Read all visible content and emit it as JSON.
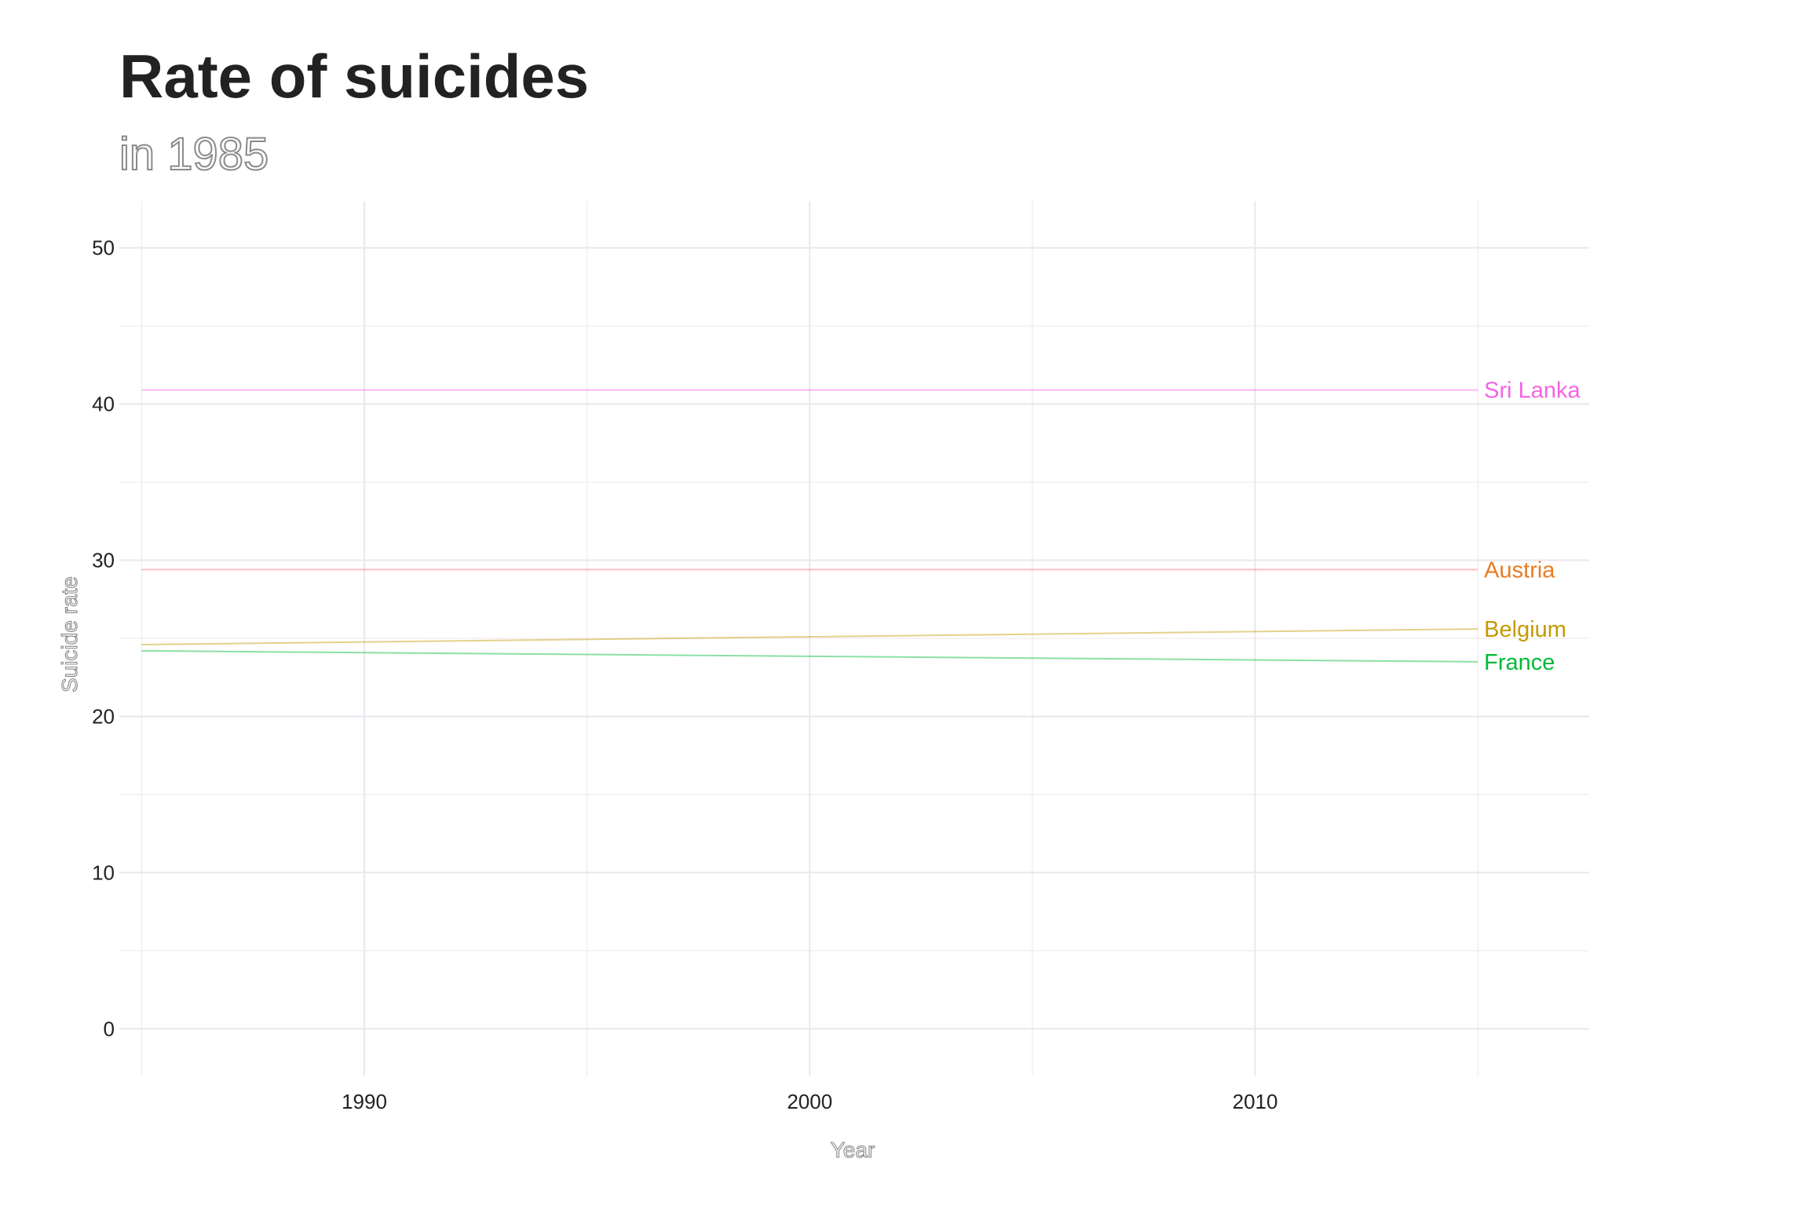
{
  "chart_data": {
    "type": "line",
    "title": "Rate of suicides",
    "subtitle": "in 1985",
    "xlabel": "Year",
    "ylabel": "Suicide rate",
    "xlim": [
      1984.5,
      2017.5
    ],
    "ylim": [
      -3,
      53
    ],
    "x_ticks": [
      1990,
      2000,
      2010
    ],
    "x_ticks_minor": [
      1985,
      1995,
      2005,
      2015
    ],
    "y_ticks": [
      0,
      10,
      20,
      30,
      40,
      50
    ],
    "y_ticks_minor": [
      5,
      15,
      25,
      35,
      45
    ],
    "grid": true,
    "legend": "none (labels at line ends)",
    "series": [
      {
        "name": "Sri Lanka",
        "color": "#f564e3",
        "x": [
          1985,
          2015
        ],
        "values": [
          40.9,
          40.9
        ]
      },
      {
        "name": "Austria",
        "color": "#f8766d",
        "x": [
          1985,
          2015
        ],
        "values": [
          29.4,
          29.4
        ]
      },
      {
        "name": "Belgium",
        "color": "#c49a00",
        "x": [
          1985,
          2015
        ],
        "values": [
          24.6,
          25.6
        ]
      },
      {
        "name": "France",
        "color": "#00ba38",
        "x": [
          1985,
          2015
        ],
        "values": [
          24.2,
          23.5
        ]
      }
    ],
    "label_colors": {
      "Sri Lanka": "#f564e3",
      "Austria": "#e87d22",
      "Belgium": "#c49a00",
      "France": "#00ba38"
    },
    "grid_color": "#ece6ee"
  }
}
